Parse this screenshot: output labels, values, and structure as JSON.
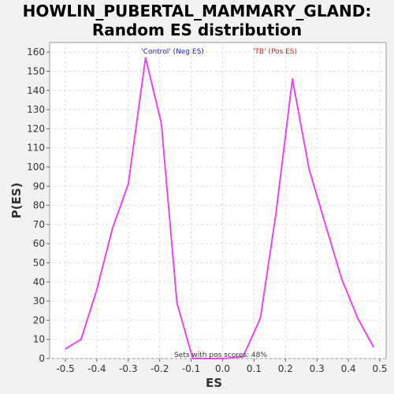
{
  "header": {
    "title_line1": "HOWLIN_PUBERTAL_MAMMARY_GLAND:",
    "title_line2": "Random ES distribution"
  },
  "chart_data": {
    "type": "line",
    "title": "HOWLIN_PUBERTAL_MAMMARY_GLAND: Random ES distribution",
    "xlabel": "ES",
    "ylabel": "P(ES)",
    "xlim": [
      -0.55,
      0.52
    ],
    "ylim": [
      0,
      165
    ],
    "grid": true,
    "xticks": [
      -0.5,
      -0.4,
      -0.3,
      -0.2,
      -0.1,
      0.0,
      0.1,
      0.2,
      0.3,
      0.4,
      0.5
    ],
    "xtick_labels": [
      "-0.5",
      "-0.4",
      "-0.3",
      "-0.2",
      "-0.1",
      "0.0",
      "0.1",
      "0.2",
      "0.3",
      "0.4",
      "0.5"
    ],
    "yticks": [
      0,
      10,
      20,
      30,
      40,
      50,
      60,
      70,
      80,
      90,
      100,
      110,
      120,
      130,
      140,
      150,
      160
    ],
    "series": [
      {
        "color": "#ee44ee",
        "x": [
          -0.5,
          -0.45,
          -0.4,
          -0.35,
          -0.3,
          -0.245,
          -0.195,
          -0.145,
          -0.095,
          -0.045,
          0.005,
          0.065,
          0.12,
          0.17,
          0.222,
          0.275,
          0.325,
          0.38,
          0.43,
          0.48
        ],
        "y": [
          5,
          10,
          36,
          68,
          91,
          157,
          123,
          29,
          0,
          0,
          0,
          1,
          21,
          76,
          146,
          99,
          71,
          41,
          21,
          6
        ]
      }
    ],
    "annotations": [
      {
        "text": "'Control' (Neg ES)",
        "color": "#2222cc"
      },
      {
        "text": "'TB' (Pos ES)",
        "color": "#cc2222"
      },
      {
        "text": "Sets with pos scores: 48%",
        "color": "#333333"
      }
    ]
  }
}
